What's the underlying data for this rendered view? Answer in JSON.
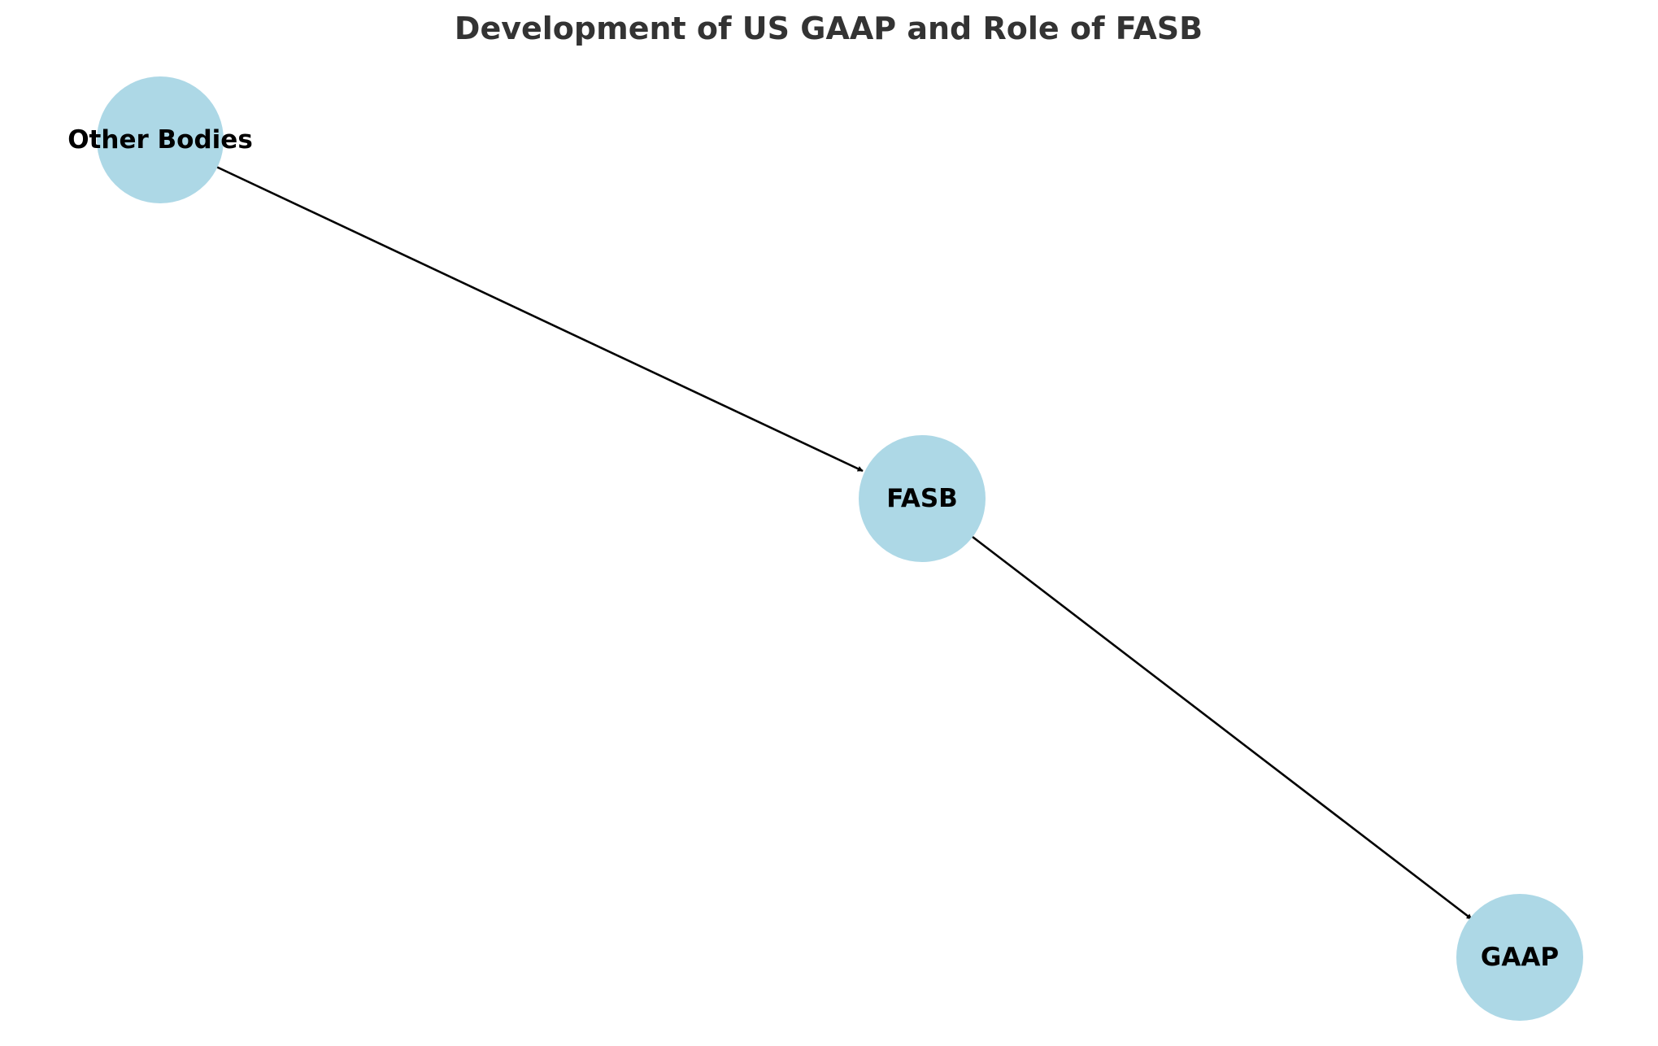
{
  "diagram": {
    "title": "Development of US GAAP and Role of FASB",
    "node_color": "#add8e6",
    "edge_color": "#000000",
    "nodes": [
      {
        "id": "other_bodies",
        "label": "Other Bodies"
      },
      {
        "id": "fasb",
        "label": "FASB"
      },
      {
        "id": "gaap",
        "label": "GAAP"
      }
    ],
    "edges": [
      {
        "from": "other_bodies",
        "to": "fasb"
      },
      {
        "from": "fasb",
        "to": "gaap"
      }
    ]
  }
}
